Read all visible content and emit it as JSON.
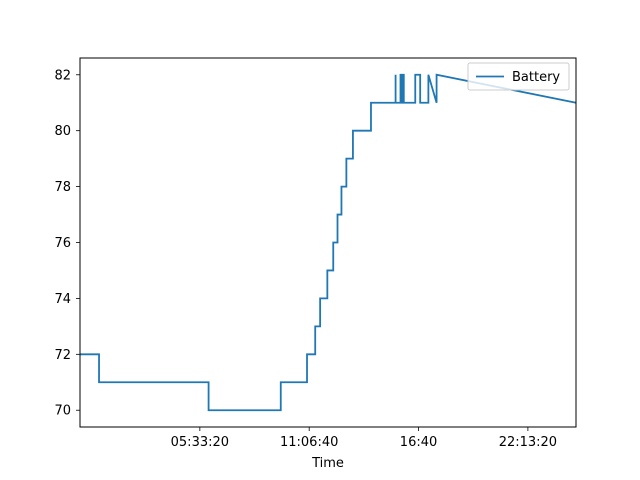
{
  "chart_data": {
    "type": "line",
    "title": "",
    "xlabel": "Time",
    "ylabel": "",
    "x_unit": "hh:mm:ss",
    "xlim": [
      "-00:32:00",
      "24:40:00"
    ],
    "ylim": [
      69.4,
      82.6
    ],
    "xticks": [
      {
        "label": "05:33:20",
        "value": "05:33:20"
      },
      {
        "label": "11:06:40",
        "value": "11:06:40"
      },
      {
        "label": "16:40",
        "value": "16:40:00"
      },
      {
        "label": "22:13:20",
        "value": "22:13:20"
      }
    ],
    "yticks": [
      70,
      72,
      74,
      76,
      78,
      80,
      82
    ],
    "grid": false,
    "legend": {
      "placement": "top-right"
    },
    "series": [
      {
        "name": "Battery",
        "color": "#1f77b4",
        "x": [
          "-00:32:00",
          "00:26:00",
          "00:26:00",
          "00:26:00",
          "00:26:00",
          "00:26:00",
          "00:26:00",
          "06:00:00",
          "06:00:00",
          "09:40:00",
          "09:40:00",
          "10:30:00",
          "10:30:00",
          "10:30:00",
          "11:00:00",
          "11:00:00",
          "11:25:00",
          "11:25:00",
          "11:40:00",
          "11:40:00",
          "11:45:00",
          "11:45:00",
          "12:02:00",
          "12:02:00",
          "12:20:00",
          "12:20:00",
          "12:33:00",
          "12:33:00",
          "12:45:00",
          "12:45:00",
          "13:00:00",
          "13:00:00",
          "13:05:00",
          "13:05:00",
          "13:20:00",
          "13:20:00",
          "14:15:00",
          "14:15:00",
          "14:50:00",
          "14:50:00",
          "14:55:00",
          "14:55:00",
          "15:30:00",
          "15:30:00",
          "15:30:00",
          "15:45:00",
          "15:45:00",
          "15:48:00",
          "15:48:00",
          "15:52:00",
          "15:52:00",
          "15:55:00",
          "15:55:00",
          "16:30:00",
          "16:30:00",
          "16:45:00",
          "16:45:00",
          "17:10:00",
          "17:10:00",
          "17:35:00",
          "17:35:00",
          "24:40:00"
        ],
        "y": [
          72,
          72,
          71,
          72,
          71,
          72,
          71,
          71,
          70,
          70,
          71,
          71,
          71,
          71,
          71,
          72,
          72,
          73,
          73,
          74,
          74,
          74,
          74,
          75,
          75,
          76,
          76,
          77,
          77,
          78,
          78,
          79,
          79,
          79,
          79,
          80,
          80,
          81,
          81,
          81,
          81,
          81,
          81,
          82,
          81,
          81,
          82,
          82,
          81,
          81,
          82,
          82,
          81,
          81,
          82,
          82,
          81,
          81,
          82,
          81,
          82,
          81
        ]
      }
    ]
  }
}
